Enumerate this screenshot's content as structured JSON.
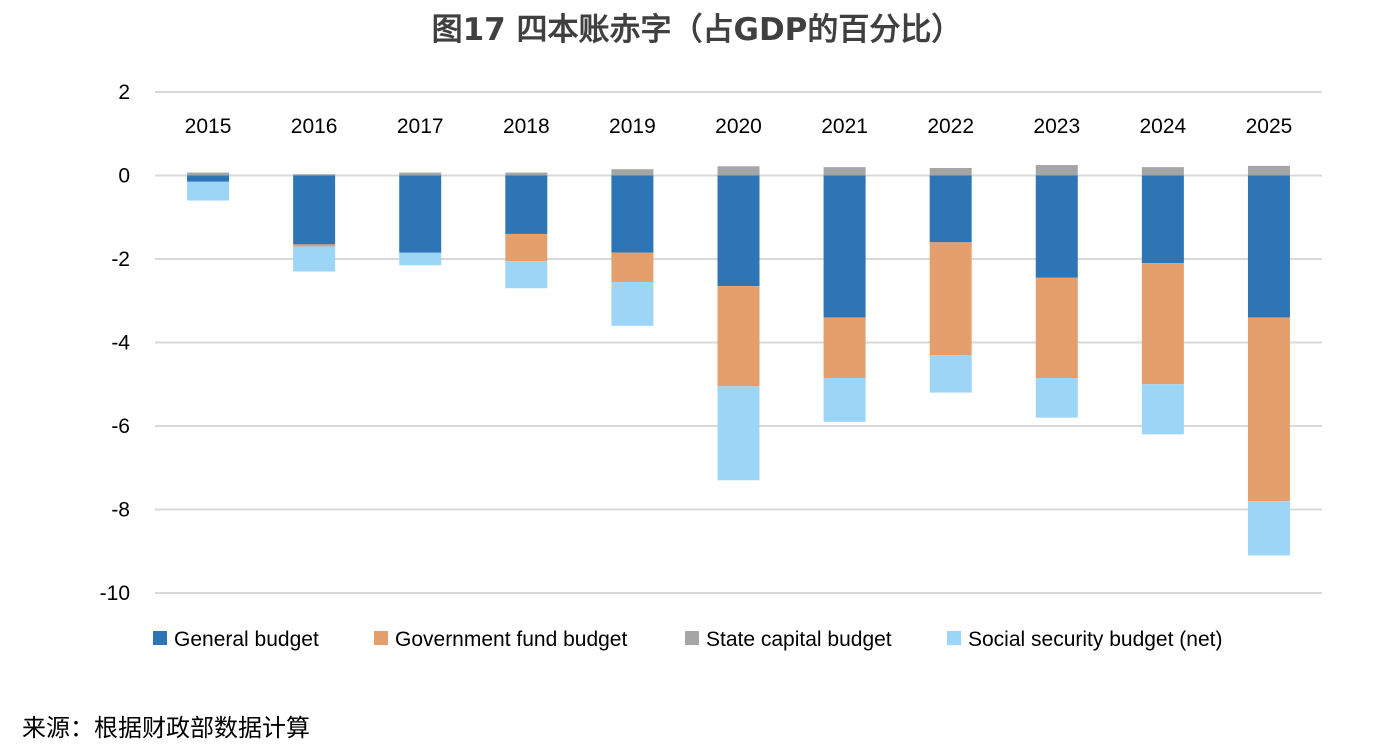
{
  "title": "图17 四本账赤字（占GDP的百分比）",
  "source": "来源：根据财政部数据计算",
  "chart_data": {
    "type": "bar",
    "stacked": true,
    "categories": [
      "2015",
      "2016",
      "2017",
      "2018",
      "2019",
      "2020",
      "2021",
      "2022",
      "2023",
      "2024",
      "2025"
    ],
    "series": [
      {
        "name": "General budget",
        "color": "#2E75B6",
        "values": [
          -0.15,
          -1.65,
          -1.85,
          -1.4,
          -1.85,
          -2.65,
          -3.4,
          -1.6,
          -2.45,
          -2.1,
          -3.4
        ]
      },
      {
        "name": "Government fund budget",
        "color": "#E49F6C",
        "values": [
          0,
          -0.05,
          0,
          -0.65,
          -0.7,
          -2.4,
          -1.45,
          -2.7,
          -2.4,
          -2.9,
          -4.4
        ]
      },
      {
        "name": "State capital budget",
        "color": "#A5A5A5",
        "values": [
          0.07,
          0.03,
          0.07,
          0.07,
          0.15,
          0.22,
          0.2,
          0.18,
          0.25,
          0.2,
          0.23
        ]
      },
      {
        "name": "Social security budget (net)",
        "color": "#9DD5F7",
        "values": [
          -0.45,
          -0.6,
          -0.3,
          -0.65,
          -1.05,
          -2.25,
          -1.05,
          -0.9,
          -0.95,
          -1.2,
          -1.3
        ]
      }
    ],
    "ylim": [
      -10,
      2
    ],
    "yticks": [
      2,
      0,
      -2,
      -4,
      -6,
      -8,
      -10
    ],
    "grid": true,
    "legend": "bottom",
    "xlabel": "",
    "ylabel": ""
  }
}
